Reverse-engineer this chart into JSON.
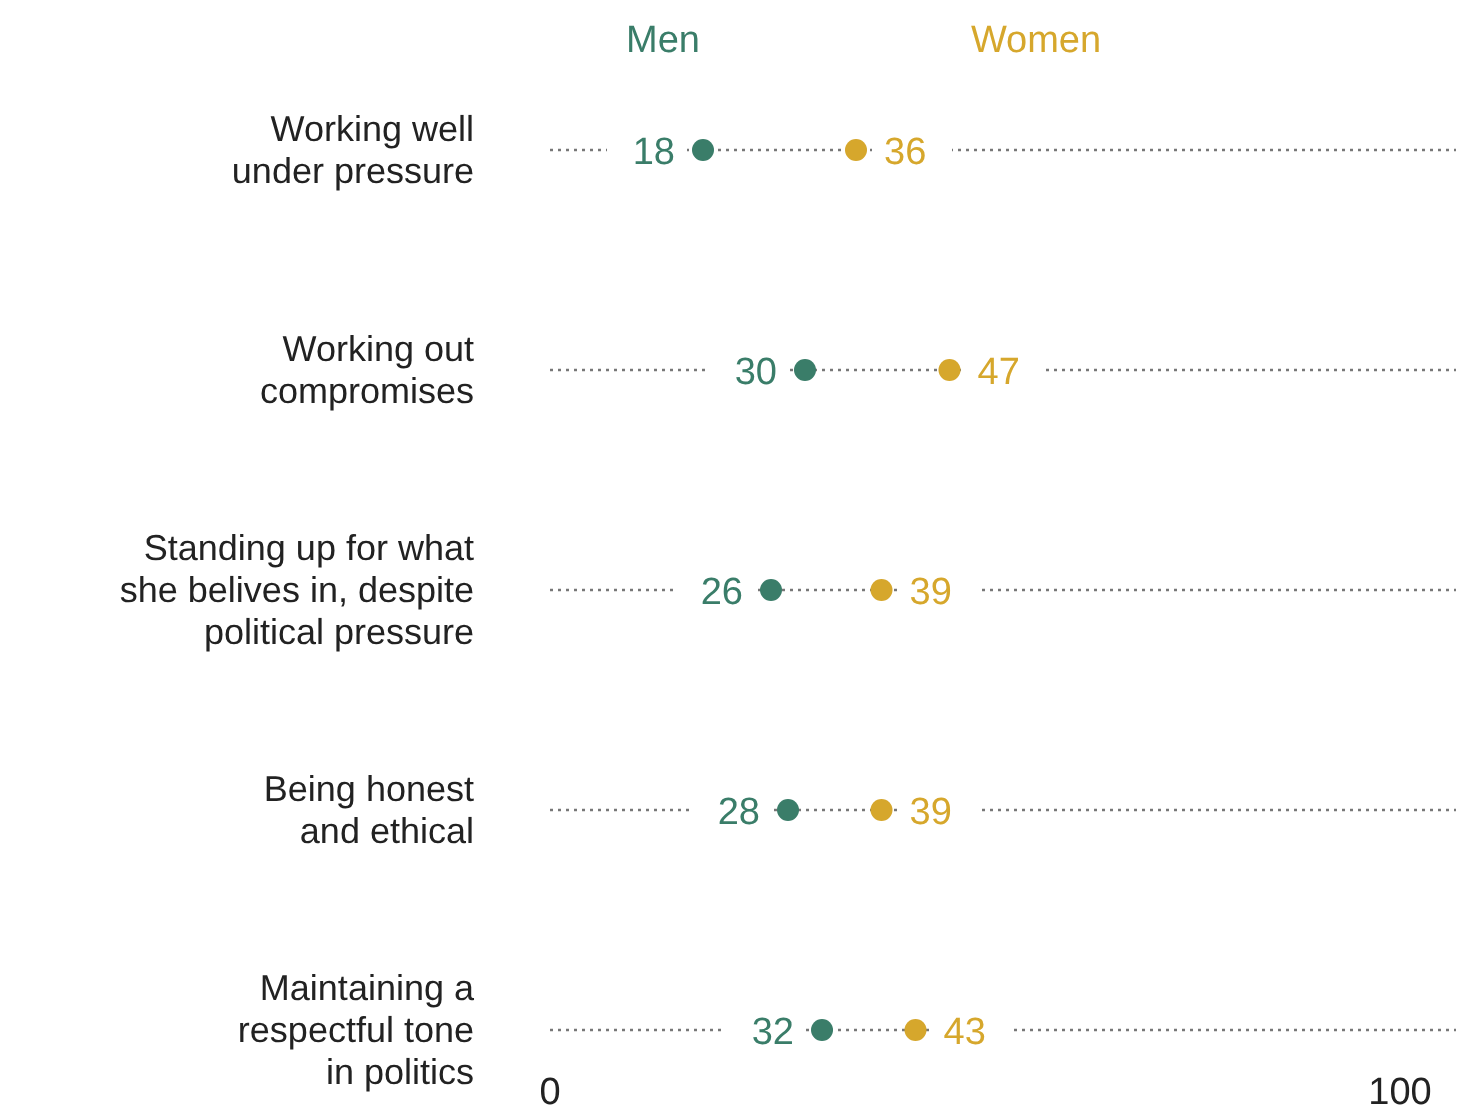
{
  "chart_data": {
    "type": "scatter",
    "orientation": "horizontal",
    "categories": [
      "Working well\nunder pressure",
      "Working out\ncompromises",
      "Standing up for what\nshe belives in, despite\npolitical pressure",
      "Being honest\nand ethical",
      "Maintaining a\nrespectful tone\nin politics"
    ],
    "series": [
      {
        "name": "Men",
        "color": "#3a7d69",
        "values": [
          18,
          30,
          26,
          28,
          32
        ]
      },
      {
        "name": "Women",
        "color": "#d6a72c",
        "values": [
          36,
          47,
          39,
          39,
          43
        ]
      }
    ],
    "xlim": [
      0,
      100
    ],
    "xticks": [
      0,
      100
    ],
    "data_labels": true,
    "legend": "top",
    "marker": "circle",
    "grid": "y",
    "line_style": "dotted"
  }
}
